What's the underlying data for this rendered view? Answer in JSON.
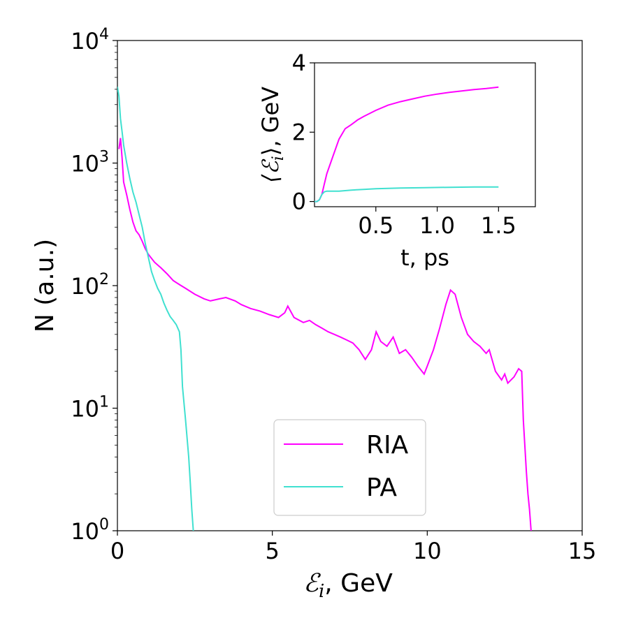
{
  "chart_data": [
    {
      "type": "line",
      "title": "",
      "xlabel_symbol": "ℰ",
      "xlabel_sub": "i",
      "xlabel_unit": ", GeV",
      "ylabel": "N (a.u.)",
      "xlim": [
        0,
        15
      ],
      "ylim": [
        1,
        10000
      ],
      "yscale": "log",
      "xticks": [
        "0",
        "5",
        "10",
        "15"
      ],
      "yticks": [
        {
          "base": "10",
          "exp": "0"
        },
        {
          "base": "10",
          "exp": "1"
        },
        {
          "base": "10",
          "exp": "2"
        },
        {
          "base": "10",
          "exp": "3"
        },
        {
          "base": "10",
          "exp": "4"
        }
      ],
      "legend_position": "lower-right",
      "grid": false,
      "series": [
        {
          "name": "RIA",
          "color": "#ff00ff",
          "x": [
            0.05,
            0.1,
            0.15,
            0.2,
            0.3,
            0.4,
            0.5,
            0.6,
            0.7,
            0.8,
            0.9,
            1.0,
            1.2,
            1.4,
            1.6,
            1.8,
            2.0,
            2.2,
            2.5,
            2.8,
            3.0,
            3.3,
            3.5,
            3.8,
            4.0,
            4.3,
            4.6,
            4.9,
            5.2,
            5.4,
            5.5,
            5.7,
            6.0,
            6.2,
            6.4,
            6.6,
            6.8,
            7.0,
            7.2,
            7.4,
            7.6,
            7.8,
            8.0,
            8.2,
            8.35,
            8.5,
            8.7,
            8.9,
            9.1,
            9.3,
            9.5,
            9.7,
            9.9,
            10.0,
            10.2,
            10.4,
            10.6,
            10.75,
            10.9,
            11.1,
            11.3,
            11.5,
            11.7,
            11.9,
            12.0,
            12.2,
            12.4,
            12.5,
            12.6,
            12.8,
            12.95,
            13.05,
            13.1,
            13.2,
            13.25,
            13.3,
            13.35
          ],
          "y": [
            1300,
            1600,
            1100,
            700,
            550,
            420,
            330,
            280,
            260,
            230,
            200,
            180,
            155,
            140,
            125,
            110,
            102,
            95,
            85,
            78,
            75,
            78,
            80,
            75,
            70,
            65,
            62,
            58,
            55,
            60,
            68,
            55,
            50,
            52,
            48,
            45,
            42,
            40,
            38,
            36,
            34,
            30,
            25,
            30,
            42,
            35,
            32,
            38,
            28,
            30,
            26,
            22,
            19,
            22,
            30,
            45,
            70,
            92,
            85,
            55,
            40,
            35,
            32,
            28,
            30,
            20,
            17,
            19,
            16,
            18,
            21,
            20,
            8,
            3,
            2,
            1.5,
            1
          ]
        },
        {
          "name": "PA",
          "color": "#40e0d0",
          "x": [
            0.0,
            0.05,
            0.1,
            0.15,
            0.2,
            0.3,
            0.4,
            0.5,
            0.6,
            0.7,
            0.8,
            0.9,
            1.0,
            1.1,
            1.2,
            1.3,
            1.4,
            1.5,
            1.6,
            1.7,
            1.8,
            1.9,
            2.0,
            2.05,
            2.1,
            2.2,
            2.3,
            2.35,
            2.4,
            2.45
          ],
          "y": [
            4200,
            3500,
            2300,
            1800,
            1400,
            1000,
            750,
            580,
            480,
            380,
            300,
            220,
            170,
            130,
            110,
            95,
            85,
            72,
            63,
            56,
            52,
            48,
            42,
            30,
            15,
            8,
            4,
            2.5,
            1.5,
            1
          ]
        }
      ]
    },
    {
      "type": "line",
      "title": "",
      "xlabel": "t, ps",
      "ylabel_symbol": "⟨ℰ",
      "ylabel_sub": "i",
      "ylabel_close": "⟩",
      "ylabel_unit": ", GeV",
      "xlim": [
        0,
        1.8
      ],
      "ylim": [
        -0.15,
        4
      ],
      "xticks": [
        "0.5",
        "1.0",
        "1.5"
      ],
      "yticks": [
        "0",
        "2",
        "4"
      ],
      "grid": false,
      "series": [
        {
          "color": "#ff00ff",
          "x": [
            0.0,
            0.02,
            0.04,
            0.06,
            0.08,
            0.1,
            0.15,
            0.2,
            0.25,
            0.3,
            0.35,
            0.4,
            0.5,
            0.6,
            0.7,
            0.8,
            0.9,
            1.0,
            1.1,
            1.2,
            1.3,
            1.4,
            1.5
          ],
          "y": [
            0.0,
            0.0,
            0.05,
            0.2,
            0.5,
            0.8,
            1.3,
            1.8,
            2.1,
            2.22,
            2.35,
            2.45,
            2.63,
            2.78,
            2.88,
            2.96,
            3.04,
            3.1,
            3.15,
            3.19,
            3.23,
            3.26,
            3.3
          ]
        },
        {
          "color": "#40e0d0",
          "x": [
            0.0,
            0.02,
            0.04,
            0.06,
            0.08,
            0.1,
            0.15,
            0.2,
            0.3,
            0.4,
            0.5,
            0.7,
            0.9,
            1.1,
            1.3,
            1.5
          ],
          "y": [
            0.0,
            0.0,
            0.05,
            0.2,
            0.28,
            0.3,
            0.3,
            0.3,
            0.33,
            0.35,
            0.37,
            0.39,
            0.4,
            0.41,
            0.42,
            0.42
          ]
        }
      ]
    }
  ]
}
